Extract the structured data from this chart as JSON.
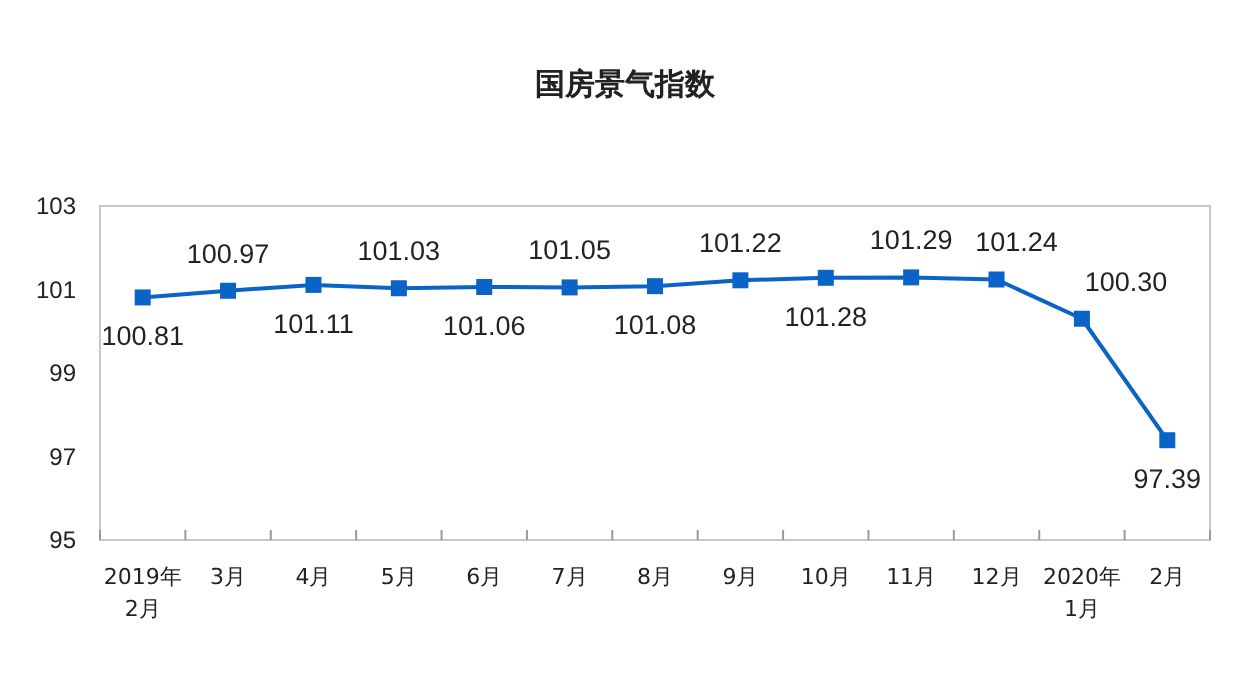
{
  "chart_data": {
    "type": "line",
    "title": "国房景气指数",
    "categories": [
      "2019年\n2月",
      "3月",
      "4月",
      "5月",
      "6月",
      "7月",
      "8月",
      "9月",
      "10月",
      "11月",
      "12月",
      "2020年\n1月",
      "2月"
    ],
    "series": [
      {
        "color": "#0a64c8",
        "values": [
          100.81,
          100.97,
          101.11,
          101.03,
          101.06,
          101.05,
          101.08,
          101.22,
          101.28,
          101.29,
          101.24,
          100.3,
          97.39
        ],
        "value_labels": [
          "100.81",
          "100.97",
          "101.11",
          "101.03",
          "101.06",
          "101.05",
          "101.08",
          "101.22",
          "101.28",
          "101.29",
          "101.24",
          "100.30",
          "97.39"
        ]
      }
    ],
    "ylim": [
      95,
      103
    ],
    "yticks": [
      95,
      97,
      99,
      101,
      103
    ],
    "grid": false,
    "marker": "square",
    "line_style": "solid"
  }
}
